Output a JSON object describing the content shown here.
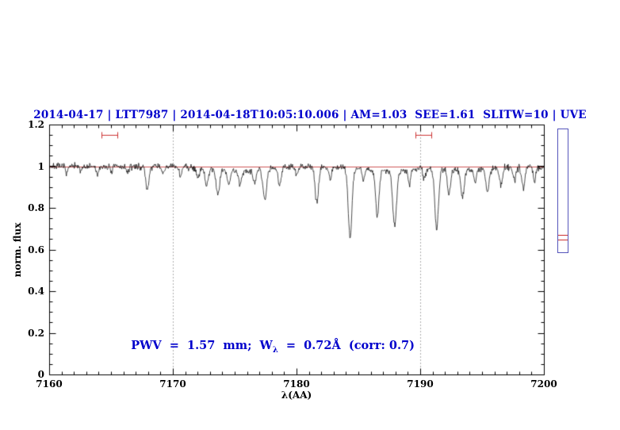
{
  "chart_data": {
    "type": "line",
    "title": "2014-04-17 | LTT7987 | 2014-04-18T10:05:10.006 | AM=1.03  SEE=1.61  SLITW=10 | UVE",
    "xlabel": "λ(AA)",
    "ylabel": "norm. flux",
    "xlim": [
      7160,
      7200
    ],
    "ylim": [
      0,
      1.2
    ],
    "x_ticks": {
      "values": [
        7160,
        7170,
        7180,
        7190,
        7200
      ],
      "labels": [
        "7160",
        "7170",
        "7180",
        "7190",
        "7200"
      ]
    },
    "y_ticks": {
      "values": [
        0,
        0.2,
        0.4,
        0.6,
        0.8,
        1,
        1.2
      ],
      "labels": [
        "0",
        "0.2",
        "0.4",
        "0.6",
        "0.8",
        "1",
        "1.2"
      ]
    },
    "x_minor_step": 1,
    "y_minor_step": 0.05,
    "grid": false,
    "legend": "none",
    "dotted_vlines": [
      7170,
      7190
    ],
    "continuum_level": 1.0,
    "noise_sigma": 0.008,
    "absorption_lines": [
      [
        7161.4,
        0.025,
        0.1
      ],
      [
        7162.5,
        0.02,
        0.09
      ],
      [
        7163.9,
        0.04,
        0.11
      ],
      [
        7165.0,
        0.025,
        0.1
      ],
      [
        7166.3,
        0.03,
        0.1
      ],
      [
        7167.9,
        0.11,
        0.13
      ],
      [
        7169.2,
        0.035,
        0.1
      ],
      [
        7170.6,
        0.045,
        0.1
      ],
      [
        7172.0,
        0.05,
        0.12
      ],
      [
        7172.7,
        0.09,
        0.13
      ],
      [
        7173.6,
        0.12,
        0.14
      ],
      [
        7174.5,
        0.07,
        0.12
      ],
      [
        7175.4,
        0.07,
        0.12
      ],
      [
        7176.6,
        0.06,
        0.12
      ],
      [
        7177.4,
        0.15,
        0.14
      ],
      [
        7178.6,
        0.08,
        0.12
      ],
      [
        7180.0,
        0.045,
        0.1
      ],
      [
        7181.6,
        0.175,
        0.14
      ],
      [
        7182.7,
        0.055,
        0.11
      ],
      [
        7184.3,
        0.335,
        0.15
      ],
      [
        7185.4,
        0.05,
        0.1
      ],
      [
        7186.5,
        0.22,
        0.14
      ],
      [
        7187.9,
        0.26,
        0.16
      ],
      [
        7189.1,
        0.06,
        0.11
      ],
      [
        7190.3,
        0.05,
        0.1
      ],
      [
        7191.3,
        0.295,
        0.15
      ],
      [
        7192.3,
        0.12,
        0.13
      ],
      [
        7193.4,
        0.135,
        0.14
      ],
      [
        7194.4,
        0.06,
        0.11
      ],
      [
        7195.4,
        0.11,
        0.13
      ],
      [
        7196.5,
        0.085,
        0.12
      ],
      [
        7197.6,
        0.06,
        0.11
      ],
      [
        7198.3,
        0.1,
        0.13
      ],
      [
        7199.2,
        0.065,
        0.11
      ],
      [
        7175.5,
        0.02,
        1.8
      ],
      [
        7187.5,
        0.02,
        2.0
      ],
      [
        7194.0,
        0.015,
        1.8
      ]
    ],
    "range_markers": [
      {
        "x1": 7164.2,
        "x2": 7165.5,
        "y": 1.15
      },
      {
        "x1": 7189.6,
        "x2": 7190.9,
        "y": 1.15
      }
    ],
    "annotation": {
      "prefix": "PWV  =  1.57  mm;  W",
      "sub": "λ",
      "suffix": "  =  0.72Å  (corr: 0.7)"
    }
  },
  "colors": {
    "title_blue": "#0000cc",
    "annotation_blue": "#0000cc",
    "spectrum_black": "#000000",
    "continuum_red": "#cc5555",
    "marker_red": "#cc3333",
    "dotted_line": "#333333",
    "side_panel_blue": "#5555bb"
  }
}
